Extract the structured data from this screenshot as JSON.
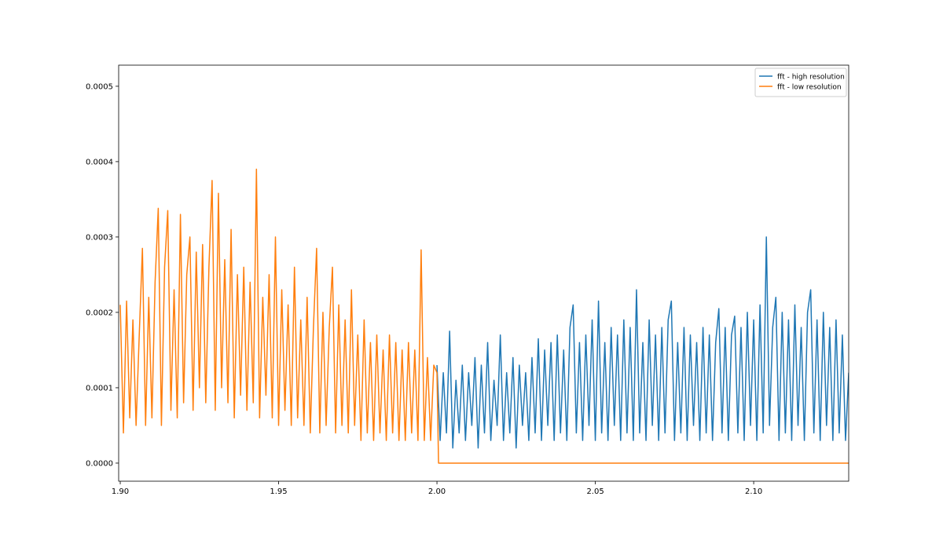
{
  "chart_data": {
    "type": "line",
    "xlim": [
      1.8995,
      2.13
    ],
    "ylim": [
      -2.4e-05,
      0.000528
    ],
    "xticks": [
      {
        "value": 1.9,
        "label": "1.90"
      },
      {
        "value": 1.95,
        "label": "1.95"
      },
      {
        "value": 2.0,
        "label": "2.00"
      },
      {
        "value": 2.05,
        "label": "2.05"
      },
      {
        "value": 2.1,
        "label": "2.10"
      }
    ],
    "yticks": [
      {
        "value": 0,
        "label": "0.0000"
      },
      {
        "value": 0.0001,
        "label": "0.0001"
      },
      {
        "value": 0.0002,
        "label": "0.0002"
      },
      {
        "value": 0.0003,
        "label": "0.0003"
      },
      {
        "value": 0.0004,
        "label": "0.0004"
      },
      {
        "value": 0.0005,
        "label": "0.0005"
      }
    ],
    "legend": "upper right",
    "series": [
      {
        "name": "fft - high resolution",
        "color": "#1f77b4",
        "x": [
          2.0,
          2.001,
          2.002,
          2.003,
          2.004,
          2.005,
          2.006,
          2.007,
          2.008,
          2.009,
          2.01,
          2.011,
          2.012,
          2.013,
          2.014,
          2.015,
          2.016,
          2.017,
          2.018,
          2.019,
          2.02,
          2.021,
          2.022,
          2.023,
          2.024,
          2.025,
          2.026,
          2.027,
          2.028,
          2.029,
          2.03,
          2.031,
          2.032,
          2.033,
          2.034,
          2.035,
          2.036,
          2.037,
          2.038,
          2.039,
          2.04,
          2.041,
          2.042,
          2.043,
          2.044,
          2.045,
          2.046,
          2.047,
          2.048,
          2.049,
          2.05,
          2.051,
          2.052,
          2.053,
          2.054,
          2.055,
          2.056,
          2.057,
          2.058,
          2.059,
          2.06,
          2.061,
          2.062,
          2.063,
          2.064,
          2.065,
          2.066,
          2.067,
          2.068,
          2.069,
          2.07,
          2.071,
          2.072,
          2.073,
          2.074,
          2.075,
          2.076,
          2.077,
          2.078,
          2.079,
          2.08,
          2.081,
          2.082,
          2.083,
          2.084,
          2.085,
          2.086,
          2.087,
          2.088,
          2.089,
          2.09,
          2.091,
          2.092,
          2.093,
          2.094,
          2.095,
          2.096,
          2.097,
          2.098,
          2.099,
          2.1,
          2.101,
          2.102,
          2.103,
          2.104,
          2.105,
          2.106,
          2.107,
          2.108,
          2.109,
          2.11,
          2.111,
          2.112,
          2.113,
          2.114,
          2.115,
          2.116,
          2.117,
          2.118,
          2.119,
          2.12,
          2.121,
          2.122,
          2.123,
          2.124,
          2.125,
          2.126,
          2.127,
          2.128,
          2.129,
          2.13
        ],
        "values": [
          0.00013,
          3e-05,
          0.00012,
          4e-05,
          0.000175,
          2e-05,
          0.00011,
          4e-05,
          0.00013,
          3e-05,
          0.00012,
          5e-05,
          0.00014,
          2e-05,
          0.00013,
          4e-05,
          0.00016,
          3e-05,
          0.00011,
          5e-05,
          0.00017,
          3e-05,
          0.00012,
          4e-05,
          0.00014,
          2e-05,
          0.00013,
          5e-05,
          0.00012,
          3e-05,
          0.00014,
          4e-05,
          0.000165,
          3e-05,
          0.00015,
          5e-05,
          0.00016,
          3e-05,
          0.00017,
          4e-05,
          0.00015,
          3e-05,
          0.00018,
          0.00021,
          4e-05,
          0.00016,
          3e-05,
          0.00017,
          5e-05,
          0.00019,
          3e-05,
          0.000215,
          4e-05,
          0.00016,
          3e-05,
          0.00018,
          5e-05,
          0.00017,
          3e-05,
          0.00019,
          4e-05,
          0.00018,
          3e-05,
          0.00023,
          4e-05,
          0.00016,
          3e-05,
          0.00019,
          5e-05,
          0.00017,
          3e-05,
          0.00018,
          4e-05,
          0.00019,
          0.000215,
          3e-05,
          0.00016,
          4e-05,
          0.00018,
          3e-05,
          0.00017,
          5e-05,
          0.00016,
          3e-05,
          0.00018,
          4e-05,
          0.00017,
          3e-05,
          0.00016,
          0.000205,
          4e-05,
          0.00018,
          3e-05,
          0.00017,
          0.000195,
          4e-05,
          0.00018,
          3e-05,
          0.0002,
          5e-05,
          0.00019,
          3e-05,
          0.00021,
          4e-05,
          0.0003,
          5e-05,
          0.00018,
          0.00022,
          3e-05,
          0.0002,
          4e-05,
          0.00019,
          3e-05,
          0.00021,
          5e-05,
          0.00018,
          3e-05,
          0.0002,
          0.00023,
          4e-05,
          0.00019,
          3e-05,
          0.0002,
          5e-05,
          0.00018,
          3e-05,
          0.00019,
          4e-05,
          0.00017,
          3e-05,
          0.00012
        ]
      },
      {
        "name": "fft - low resolution",
        "color": "#ff7f0e",
        "x": [
          1.9,
          1.901,
          1.902,
          1.903,
          1.904,
          1.905,
          1.906,
          1.907,
          1.908,
          1.909,
          1.91,
          1.911,
          1.912,
          1.913,
          1.914,
          1.915,
          1.916,
          1.917,
          1.918,
          1.919,
          1.92,
          1.921,
          1.922,
          1.923,
          1.924,
          1.925,
          1.926,
          1.927,
          1.928,
          1.929,
          1.93,
          1.931,
          1.932,
          1.933,
          1.934,
          1.935,
          1.936,
          1.937,
          1.938,
          1.939,
          1.94,
          1.941,
          1.942,
          1.943,
          1.944,
          1.945,
          1.946,
          1.947,
          1.948,
          1.949,
          1.95,
          1.951,
          1.952,
          1.953,
          1.954,
          1.955,
          1.956,
          1.957,
          1.958,
          1.959,
          1.96,
          1.961,
          1.962,
          1.963,
          1.964,
          1.965,
          1.966,
          1.967,
          1.968,
          1.969,
          1.97,
          1.971,
          1.972,
          1.973,
          1.974,
          1.975,
          1.976,
          1.977,
          1.978,
          1.979,
          1.98,
          1.981,
          1.982,
          1.983,
          1.984,
          1.985,
          1.986,
          1.987,
          1.988,
          1.989,
          1.99,
          1.991,
          1.992,
          1.993,
          1.994,
          1.995,
          1.996,
          1.997,
          1.998,
          1.999,
          2.0,
          2.0005,
          2.13
        ],
        "values": [
          0.00021,
          4e-05,
          0.000215,
          6e-05,
          0.00019,
          5e-05,
          0.00017,
          0.000285,
          5e-05,
          0.00022,
          6e-05,
          0.00024,
          0.000338,
          5e-05,
          0.00026,
          0.000335,
          7e-05,
          0.00023,
          6e-05,
          0.00033,
          8e-05,
          0.00025,
          0.0003,
          7e-05,
          0.00028,
          0.0001,
          0.00029,
          8e-05,
          0.00026,
          0.000375,
          7e-05,
          0.000358,
          0.0001,
          0.00027,
          8e-05,
          0.00031,
          6e-05,
          0.00025,
          9e-05,
          0.00026,
          7e-05,
          0.00024,
          8e-05,
          0.00039,
          6e-05,
          0.00022,
          9e-05,
          0.00025,
          6e-05,
          0.0003,
          5e-05,
          0.00023,
          7e-05,
          0.00021,
          5e-05,
          0.00026,
          6e-05,
          0.00019,
          5e-05,
          0.00022,
          4e-05,
          0.00018,
          0.000285,
          4e-05,
          0.0002,
          5e-05,
          0.00018,
          0.00026,
          4e-05,
          0.00021,
          5e-05,
          0.00019,
          4e-05,
          0.00023,
          5e-05,
          0.00017,
          3e-05,
          0.00019,
          4e-05,
          0.00016,
          3e-05,
          0.00017,
          4e-05,
          0.00015,
          3e-05,
          0.00017,
          4e-05,
          0.00016,
          3e-05,
          0.00015,
          3e-05,
          0.00016,
          4e-05,
          0.00015,
          3e-05,
          0.000283,
          3e-05,
          0.00014,
          3e-05,
          0.00013,
          0.00012,
          0,
          0
        ]
      }
    ]
  }
}
